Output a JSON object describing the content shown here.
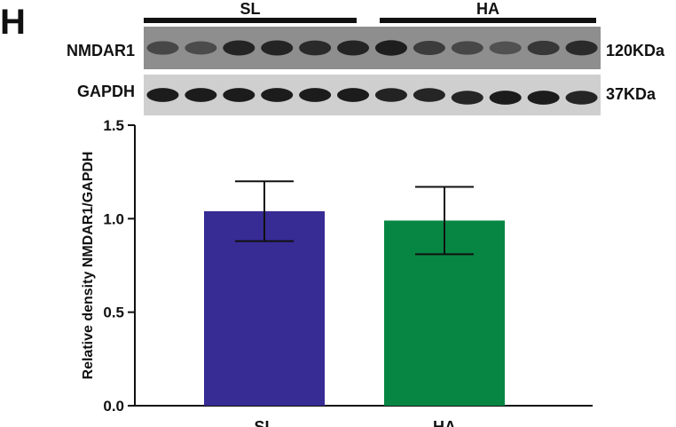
{
  "panel_label": "H",
  "blot": {
    "groups": [
      "SL",
      "HA"
    ],
    "lanes_per_group": 6,
    "rows": [
      {
        "protein": "NMDAR1",
        "size": "120KDa",
        "lane_intensity": [
          0.55,
          0.5,
          0.85,
          0.85,
          0.8,
          0.85,
          0.9,
          0.65,
          0.55,
          0.45,
          0.7,
          0.8
        ]
      },
      {
        "protein": "GAPDH",
        "size": "37KDa",
        "lane_intensity": [
          0.95,
          0.95,
          0.95,
          0.95,
          0.95,
          0.95,
          0.92,
          0.9,
          0.9,
          0.95,
          0.95,
          0.9
        ]
      }
    ]
  },
  "chart_data": {
    "type": "bar",
    "categories": [
      "SL",
      "HA"
    ],
    "values": [
      1.04,
      0.99
    ],
    "error": [
      [
        0.88,
        1.2
      ],
      [
        0.81,
        1.17
      ]
    ],
    "colors": [
      "#372b94",
      "#068642"
    ],
    "ylabel": "Relative density NMDAR1/GAPDH",
    "ylim": [
      0,
      1.5
    ],
    "yticks": [
      0.0,
      0.5,
      1.0,
      1.5
    ],
    "ytick_labels": [
      "0.0",
      "0.5",
      "1.0",
      "1.5"
    ],
    "grid": false
  }
}
